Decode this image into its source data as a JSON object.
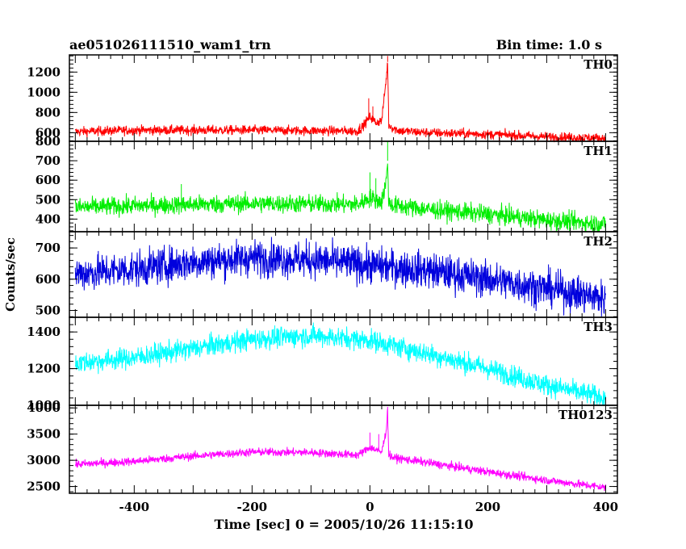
{
  "chart_data": {
    "type": "line",
    "title_left": "ae051026111510_wam1_trn",
    "title_right": "Bin time: 1.0 s",
    "xlabel": "Time [sec] 0 = 2005/10/26 11:15:10",
    "ylabel": "Counts/sec",
    "xlim": [
      -510,
      420
    ],
    "x_ticks": [
      -400,
      -200,
      0,
      200,
      400
    ],
    "grid": false,
    "panels": [
      {
        "name": "TH0",
        "color": "#ff0000",
        "ylim": [
          515,
          1370
        ],
        "y_ticks": [
          600,
          800,
          1000,
          1200
        ],
        "x": [
          -500,
          -400,
          -300,
          -200,
          -100,
          -20,
          -10,
          0,
          10,
          20,
          28,
          30,
          32,
          40,
          50,
          100,
          200,
          300,
          400
        ],
        "y": [
          610,
          625,
          625,
          625,
          620,
          615,
          680,
          760,
          700,
          720,
          1150,
          1300,
          680,
          640,
          620,
          600,
          585,
          560,
          545
        ],
        "noise": 45,
        "spikes": [
          [
            -17,
            690
          ],
          [
            -2,
            940
          ],
          [
            5,
            860
          ],
          [
            30,
            1360
          ]
        ]
      },
      {
        "name": "TH1",
        "color": "#00ee00",
        "ylim": [
          335,
          800
        ],
        "y_ticks": [
          400,
          500,
          600,
          700,
          800
        ],
        "x": [
          -500,
          -400,
          -300,
          -200,
          -100,
          -20,
          0,
          20,
          28,
          30,
          32,
          40,
          100,
          200,
          300,
          400
        ],
        "y": [
          460,
          468,
          475,
          480,
          478,
          475,
          510,
          490,
          600,
          700,
          480,
          470,
          450,
          425,
          395,
          375
        ],
        "noise": 45,
        "spikes": [
          [
            -320,
            580
          ],
          [
            0,
            640
          ],
          [
            10,
            610
          ],
          [
            30,
            800
          ]
        ]
      },
      {
        "name": "TH2",
        "color": "#0000dd",
        "ylim": [
          478,
          752
        ],
        "y_ticks": [
          500,
          600,
          700
        ],
        "x": [
          -500,
          -400,
          -300,
          -200,
          -100,
          0,
          100,
          200,
          300,
          400
        ],
        "y": [
          618,
          632,
          655,
          668,
          662,
          645,
          628,
          600,
          570,
          538
        ],
        "noise": 55,
        "spikes": []
      },
      {
        "name": "TH3",
        "color": "#00ffff",
        "ylim": [
          1000,
          1480
        ],
        "y_ticks": [
          1000,
          1200,
          1400
        ],
        "x": [
          -500,
          -400,
          -300,
          -200,
          -100,
          0,
          100,
          200,
          300,
          400
        ],
        "y": [
          1230,
          1260,
          1310,
          1360,
          1380,
          1355,
          1280,
          1200,
          1110,
          1040
        ],
        "noise": 55,
        "spikes": []
      },
      {
        "name": "TH0123",
        "color": "#ff00ff",
        "ylim": [
          2370,
          4050
        ],
        "y_ticks": [
          2500,
          3000,
          3500,
          4000
        ],
        "x": [
          -500,
          -400,
          -300,
          -200,
          -100,
          -20,
          0,
          20,
          28,
          30,
          32,
          40,
          100,
          200,
          300,
          400
        ],
        "y": [
          2920,
          2980,
          3080,
          3160,
          3150,
          3100,
          3250,
          3150,
          3600,
          3950,
          3100,
          3050,
          2950,
          2780,
          2620,
          2480
        ],
        "noise": 75,
        "spikes": [
          [
            0,
            3530
          ],
          [
            15,
            3500
          ],
          [
            30,
            4020
          ]
        ]
      }
    ]
  }
}
